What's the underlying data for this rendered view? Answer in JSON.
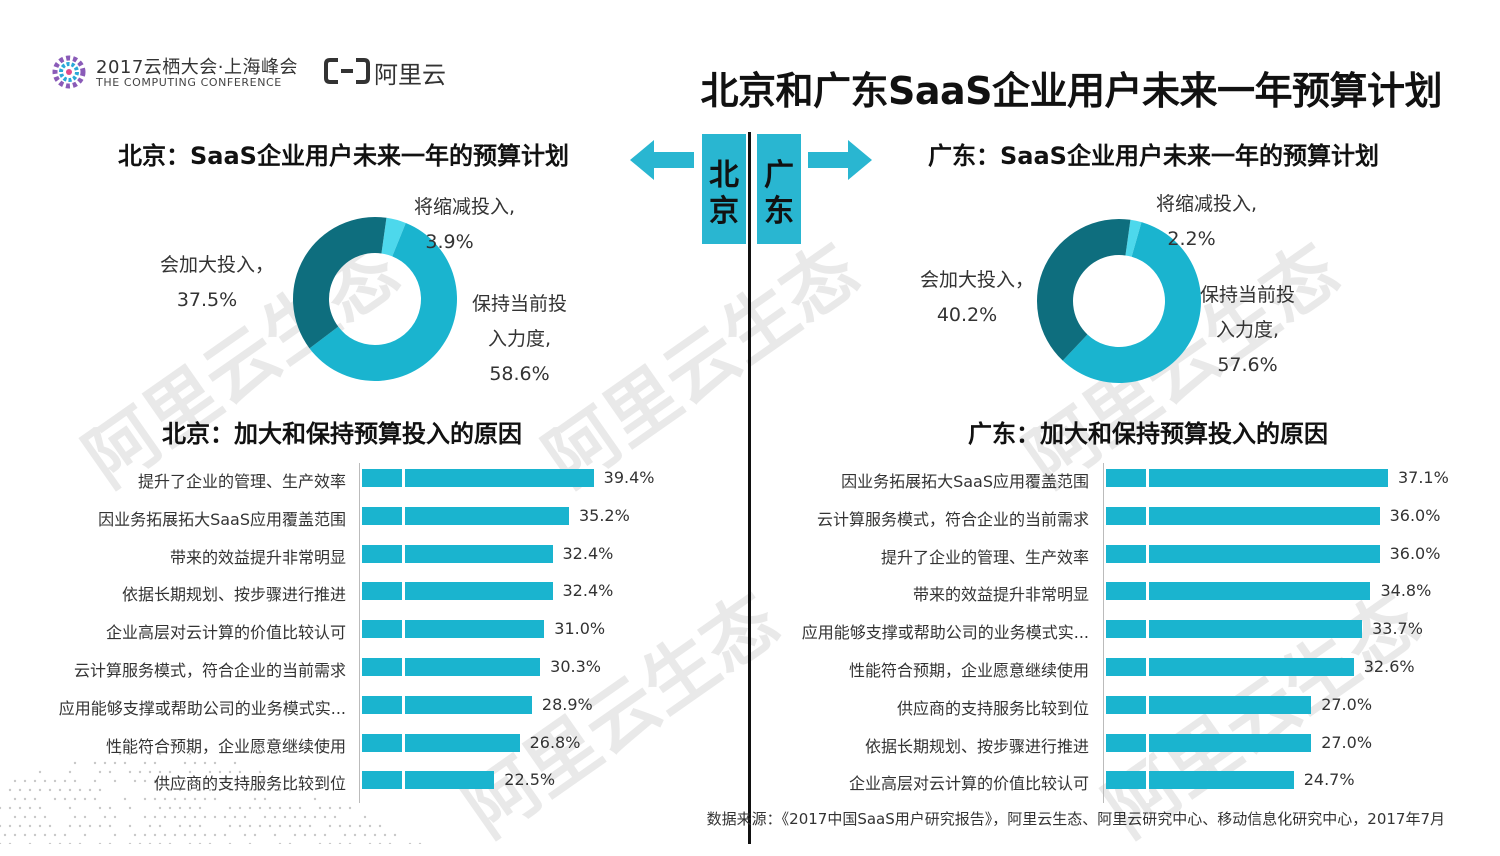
{
  "header": {
    "conference_title": "2017云栖大会·上海峰会",
    "conference_subtitle": "THE COMPUTING CONFERENCE",
    "brand_name": "阿里云",
    "main_title": "北京和广东SaaS企业用户未来一年预算计划"
  },
  "watermark": "阿里云生态",
  "cities": {
    "left": "北京",
    "right": "广东"
  },
  "colors": {
    "dark_teal": "#0e6e7e",
    "cyan": "#1ab4cf",
    "light_cyan": "#4dd8ec",
    "bar": "#1ab4cf"
  },
  "source_note": "数据来源：《2017中国SaaS用户研究报告》，阿里云生态、阿里云研究中心、移动信息化研究中心，2017年7月",
  "chart_data": [
    {
      "type": "pie",
      "title": "北京：SaaS企业用户未来一年的预算计划",
      "categories": [
        "将缩减投入",
        "保持当前投入力度",
        "会加大投入"
      ],
      "values": [
        3.9,
        58.6,
        37.5
      ],
      "display_labels": [
        [
          "将缩减投入,",
          "3.9%"
        ],
        [
          "保持当前投",
          "入力度,",
          "58.6%"
        ],
        [
          "会加大投入，",
          "37.5%"
        ]
      ]
    },
    {
      "type": "pie",
      "title": "广东：SaaS企业用户未来一年的预算计划",
      "categories": [
        "将缩减投入",
        "保持当前投入力度",
        "会加大投入"
      ],
      "values": [
        2.2,
        57.6,
        40.2
      ],
      "display_labels": [
        [
          "将缩减投入,",
          "2.2%"
        ],
        [
          "保持当前投",
          "入力度,",
          "57.6%"
        ],
        [
          "会加大投入，",
          "40.2%"
        ]
      ]
    },
    {
      "type": "bar",
      "orientation": "horizontal",
      "title": "北京：加大和保持预算投入的原因",
      "categories": [
        "提升了企业的管理、生产效率",
        "因业务拓展拓大SaaS应用覆盖范围",
        "带来的效益提升非常明显",
        "依据长期规划、按步骤进行推进",
        "企业高层对云计算的价值比较认可",
        "云计算服务模式，符合企业的当前需求",
        "应用能够支撑或帮助公司的业务模式实...",
        "性能符合预期，企业愿意继续使用",
        "供应商的支持服务比较到位"
      ],
      "values": [
        39.4,
        35.2,
        32.4,
        32.4,
        31.0,
        30.3,
        28.9,
        26.8,
        22.5
      ],
      "value_labels": [
        "39.4%",
        "35.2%",
        "32.4%",
        "32.4%",
        "31.0%",
        "30.3%",
        "28.9%",
        "26.8%",
        "22.5%"
      ]
    },
    {
      "type": "bar",
      "orientation": "horizontal",
      "title": "广东：加大和保持预算投入的原因",
      "categories": [
        "因业务拓展拓大SaaS应用覆盖范围",
        "云计算服务模式，符合企业的当前需求",
        "提升了企业的管理、生产效率",
        "带来的效益提升非常明显",
        "应用能够支撑或帮助公司的业务模式实...",
        "性能符合预期，企业愿意继续使用",
        "供应商的支持服务比较到位",
        "依据长期规划、按步骤进行推进",
        "企业高层对云计算的价值比较认可"
      ],
      "values": [
        37.1,
        36.0,
        36.0,
        34.8,
        33.7,
        32.6,
        27.0,
        27.0,
        24.7
      ],
      "value_labels": [
        "37.1%",
        "36.0%",
        "36.0%",
        "34.8%",
        "33.7%",
        "32.6%",
        "27.0%",
        "27.0%",
        "24.7%"
      ]
    }
  ]
}
